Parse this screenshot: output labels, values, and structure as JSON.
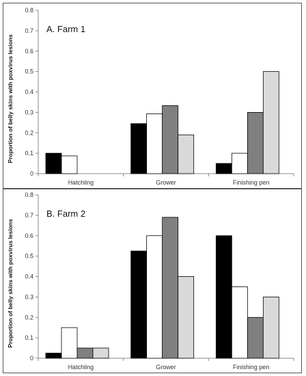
{
  "chart_data": [
    {
      "type": "bar",
      "title": "A. Farm 1",
      "ylabel": "Proportion of belly skins with  poxvirus lesions",
      "xlabel": "",
      "categories": [
        "Hatchling",
        "Grower",
        "Finishing pen"
      ],
      "ylim": [
        0,
        0.8
      ],
      "yticks": [
        "0",
        "0.1",
        "0.2",
        "0.3",
        "0.4",
        "0.5",
        "0.6",
        "0.7",
        "0.8"
      ],
      "series": [
        {
          "color": "#000000",
          "values": [
            0.1,
            0.245,
            0.05
          ]
        },
        {
          "color": "#ffffff",
          "values": [
            0.087,
            0.293,
            0.1
          ]
        },
        {
          "color": "#808080",
          "values": [
            0,
            0.333,
            0.3
          ]
        },
        {
          "color": "#d9d9d9",
          "values": [
            0,
            0.19,
            0.5
          ]
        }
      ],
      "legend": "none"
    },
    {
      "type": "bar",
      "title": "B. Farm 2",
      "ylabel": "Proportion of belly skins with  poxvirus lesions",
      "xlabel": "",
      "categories": [
        "Hatchling",
        "Grower",
        "Finishing pen"
      ],
      "ylim": [
        0,
        0.8
      ],
      "yticks": [
        "0",
        "0.1",
        "0.2",
        "0.3",
        "0.4",
        "0.5",
        "0.6",
        "0.7",
        "0.8"
      ],
      "series": [
        {
          "color": "#000000",
          "values": [
            0.025,
            0.525,
            0.6
          ]
        },
        {
          "color": "#ffffff",
          "values": [
            0.15,
            0.6,
            0.35
          ]
        },
        {
          "color": "#808080",
          "values": [
            0.05,
            0.69,
            0.2
          ]
        },
        {
          "color": "#d9d9d9",
          "values": [
            0.05,
            0.4,
            0.3
          ]
        }
      ],
      "legend": "none"
    }
  ]
}
